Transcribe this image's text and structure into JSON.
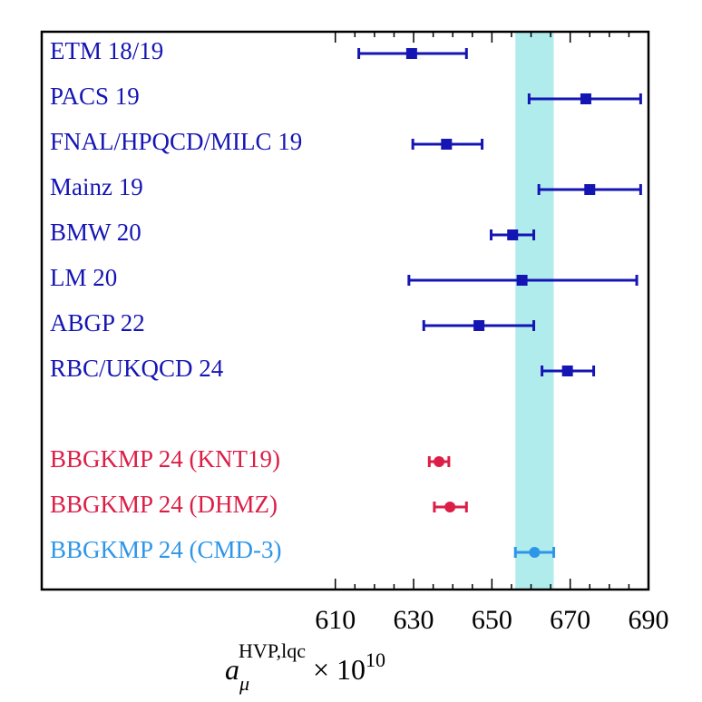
{
  "chart_data": {
    "type": "forest",
    "categories": [
      "ETM 18/19",
      "PACS 19",
      "FNAL/HPQCD/MILC 19",
      "Mainz 19",
      "BMW 20",
      "LM 20",
      "ABGP 22",
      "RBC/UKQCD 24",
      null,
      "BBGKMP 24 (KNT19)",
      "BBGKMP 24 (DHMZ)",
      "BBGKMP 24 (CMD-3)"
    ],
    "values": [
      629.5,
      674,
      638.4,
      675,
      655.3,
      657.7,
      646.7,
      669.3,
      null,
      636.5,
      639.3,
      660.9
    ],
    "lo": [
      616,
      659.5,
      629.8,
      662,
      649.8,
      628.8,
      632.6,
      662.8,
      null,
      634,
      635.3,
      656
    ],
    "hi": [
      643.5,
      688,
      647.5,
      688,
      660.7,
      687,
      660.7,
      676,
      null,
      639,
      643.5,
      665.8
    ],
    "colors": [
      "#1515b4",
      "#1515b4",
      "#1515b4",
      "#1515b4",
      "#1515b4",
      "#1515b4",
      "#1515b4",
      "#1515b4",
      null,
      "#dc1e46",
      "#dc1e46",
      "#2e96e8"
    ],
    "markers": [
      "square",
      "square",
      "square",
      "square",
      "square",
      "square",
      "square",
      "square",
      null,
      "circle",
      "circle",
      "circle"
    ],
    "band": {
      "range": [
        656,
        665.8
      ],
      "color": "#b0ecec"
    },
    "xlim": [
      535,
      690
    ],
    "xticks": [
      610,
      630,
      650,
      670,
      690
    ],
    "xlabel": {
      "base": "a",
      "sub": "μ",
      "sup": "HVP,lqc",
      "times": "× 10",
      "exp": "10"
    }
  }
}
